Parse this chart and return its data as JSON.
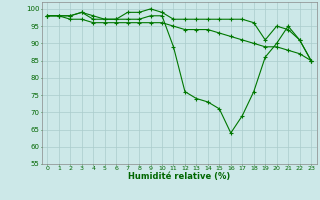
{
  "x": [
    0,
    1,
    2,
    3,
    4,
    5,
    6,
    7,
    8,
    9,
    10,
    11,
    12,
    13,
    14,
    15,
    16,
    17,
    18,
    19,
    20,
    21,
    22,
    23
  ],
  "line1": [
    98,
    98,
    98,
    99,
    97,
    97,
    97,
    99,
    99,
    100,
    99,
    97,
    97,
    97,
    97,
    97,
    97,
    97,
    96,
    91,
    95,
    94,
    91,
    85
  ],
  "line2": [
    98,
    98,
    98,
    99,
    98,
    97,
    97,
    97,
    97,
    98,
    98,
    89,
    76,
    74,
    73,
    71,
    64,
    69,
    76,
    86,
    90,
    95,
    91,
    85
  ],
  "line3": [
    98,
    98,
    97,
    97,
    96,
    96,
    96,
    96,
    96,
    96,
    96,
    95,
    94,
    94,
    94,
    93,
    92,
    91,
    90,
    89,
    89,
    88,
    87,
    85
  ],
  "bg_color": "#cce8e8",
  "grid_color": "#aacccc",
  "line_color": "#007700",
  "marker": "+",
  "xlabel": "Humidité relative (%)",
  "xlabel_color": "#006600",
  "tick_color": "#006600",
  "ylim": [
    55,
    102
  ],
  "xlim": [
    -0.5,
    23.5
  ],
  "yticks": [
    55,
    60,
    65,
    70,
    75,
    80,
    85,
    90,
    95,
    100
  ],
  "xticks": [
    0,
    1,
    2,
    3,
    4,
    5,
    6,
    7,
    8,
    9,
    10,
    11,
    12,
    13,
    14,
    15,
    16,
    17,
    18,
    19,
    20,
    21,
    22,
    23
  ]
}
